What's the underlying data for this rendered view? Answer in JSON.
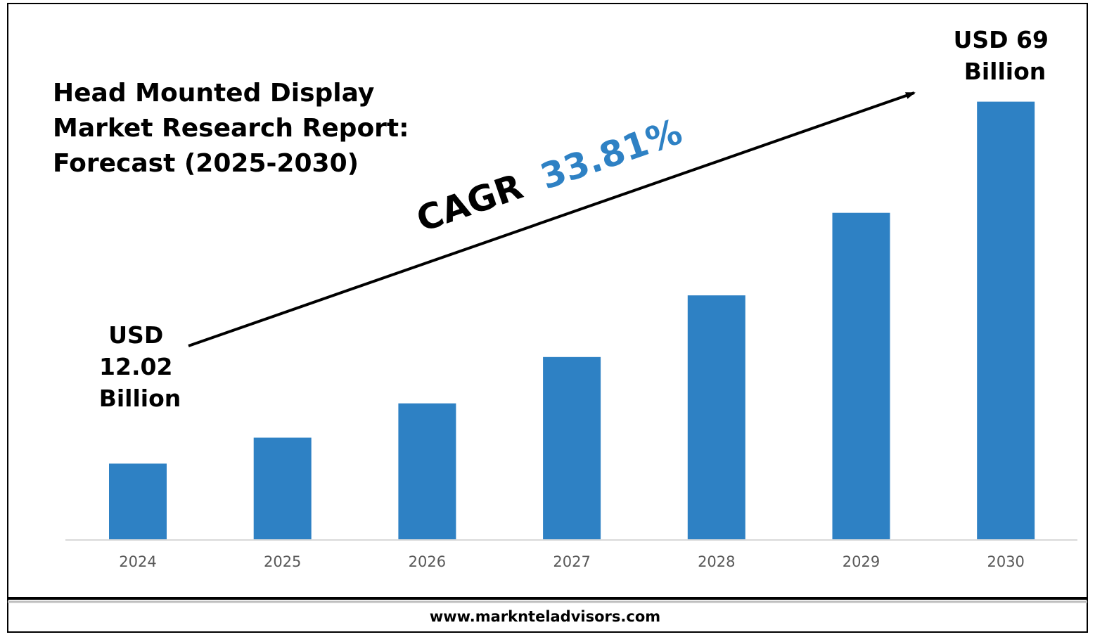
{
  "title": [
    "Head Mounted Display",
    "Market Research Report:",
    "Forecast (2025-2030)"
  ],
  "cagr": {
    "label": "CAGR",
    "value": "33.81%"
  },
  "start_label": [
    "USD",
    "12.02",
    "Billion"
  ],
  "end_label": [
    "USD 69",
    "Billion"
  ],
  "footer": "www.marknteladvisors.com",
  "colors": {
    "bar": "#2e81c4",
    "axis": "#d9d9d9",
    "tick": "#595959",
    "accent": "#2e81c4"
  },
  "chart_data": {
    "type": "bar",
    "categories": [
      "2024",
      "2025",
      "2026",
      "2027",
      "2028",
      "2029",
      "2030"
    ],
    "values": [
      12.02,
      16.1,
      21.5,
      28.8,
      38.5,
      51.5,
      69
    ],
    "unit": "USD Billion",
    "ylim": [
      0,
      85
    ],
    "grid": false,
    "legend": "none"
  }
}
